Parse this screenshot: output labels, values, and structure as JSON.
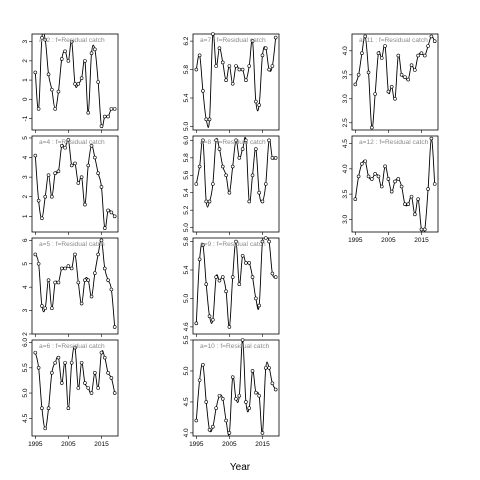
{
  "chart_data": {
    "type": "line",
    "xlabel": "Year",
    "xlim": [
      1994,
      2020
    ],
    "xticks": [
      1995,
      2005,
      2015
    ],
    "panels": [
      {
        "title": "a=2 :  f=Residual catch",
        "col": 0,
        "row": 0,
        "ylim": [
          -1.6,
          3.4
        ],
        "yticks": [
          -1,
          0,
          1,
          2,
          3
        ],
        "showXTicks": false,
        "x": [
          1995,
          1996,
          1997,
          1998,
          1999,
          2000,
          2001,
          2002,
          2003,
          2004,
          2005,
          2006,
          2007,
          2008,
          2009,
          2010,
          2011,
          2012,
          2013,
          2014,
          2015,
          2016,
          2017,
          2018,
          2019
        ],
        "y": [
          1.4,
          -0.5,
          3.2,
          3.1,
          1.3,
          0.5,
          -0.5,
          0.4,
          2.1,
          2.5,
          2.0,
          3.0,
          0.8,
          0.8,
          1.1,
          2.0,
          -0.7,
          2.4,
          2.6,
          0.9,
          -1.4,
          -0.9,
          -0.9,
          -0.5,
          -0.5
        ]
      },
      {
        "title": "a=4 :  f=Residual catch",
        "col": 0,
        "row": 1,
        "ylim": [
          0.2,
          5.1
        ],
        "yticks": [
          1,
          2,
          3,
          4,
          5
        ],
        "showXTicks": false,
        "x": [
          1995,
          1996,
          1997,
          1998,
          1999,
          2000,
          2001,
          2002,
          2003,
          2004,
          2005,
          2006,
          2007,
          2008,
          2009,
          2010,
          2011,
          2012,
          2013,
          2014,
          2015,
          2016,
          2017,
          2018,
          2019
        ],
        "y": [
          4.1,
          1.8,
          0.9,
          2.0,
          3.1,
          2.0,
          3.2,
          3.3,
          4.6,
          4.5,
          4.9,
          3.6,
          3.7,
          2.7,
          3.0,
          1.6,
          3.6,
          4.6,
          4.0,
          3.2,
          2.5,
          0.4,
          1.3,
          1.2,
          1.0
        ]
      },
      {
        "title": "a=5 :  f=Residual catch",
        "col": 0,
        "row": 2,
        "ylim": [
          2.0,
          6.1
        ],
        "yticks": [
          2,
          3,
          4,
          5,
          6
        ],
        "showXTicks": false,
        "x": [
          1995,
          1996,
          1997,
          1998,
          1999,
          2000,
          2001,
          2002,
          2003,
          2004,
          2005,
          2006,
          2007,
          2008,
          2009,
          2010,
          2011,
          2012,
          2013,
          2014,
          2015,
          2016,
          2017,
          2018,
          2019
        ],
        "y": [
          5.4,
          5.0,
          3.2,
          3.1,
          4.3,
          3.1,
          4.2,
          4.2,
          4.8,
          4.8,
          4.9,
          4.8,
          5.4,
          4.2,
          3.3,
          4.3,
          4.3,
          3.6,
          4.6,
          5.4,
          6.0,
          4.8,
          4.3,
          3.9,
          2.3
        ]
      },
      {
        "title": "a=6 :  f=Residual catch",
        "col": 0,
        "row": 3,
        "ylim": [
          4.15,
          6.05
        ],
        "yticks": [
          4.5,
          5.0,
          5.5,
          6.0
        ],
        "showXTicks": true,
        "x": [
          1995,
          1996,
          1997,
          1998,
          1999,
          2000,
          2001,
          2002,
          2003,
          2004,
          2005,
          2006,
          2007,
          2008,
          2009,
          2010,
          2011,
          2012,
          2013,
          2014,
          2015,
          2016,
          2017,
          2018,
          2019
        ],
        "y": [
          5.8,
          5.5,
          4.7,
          4.3,
          4.7,
          5.4,
          5.6,
          5.7,
          5.2,
          5.6,
          4.7,
          5.6,
          5.9,
          5.1,
          5.6,
          5.2,
          5.1,
          5.0,
          5.4,
          5.1,
          5.8,
          5.7,
          5.4,
          5.3,
          5.0
        ]
      },
      {
        "title": "a=7 :  f=Residual catch",
        "col": 1,
        "row": 0,
        "ylim": [
          4.95,
          6.3
        ],
        "yticks": [
          5.0,
          5.4,
          5.8,
          6.2
        ],
        "showXTicks": false,
        "x": [
          1995,
          1996,
          1997,
          1998,
          1999,
          2000,
          2001,
          2002,
          2003,
          2004,
          2005,
          2006,
          2007,
          2008,
          2009,
          2010,
          2011,
          2012,
          2013,
          2014,
          2015,
          2016,
          2017,
          2018,
          2019
        ],
        "y": [
          5.8,
          6.0,
          5.5,
          5.1,
          5.1,
          6.3,
          5.85,
          6.1,
          5.9,
          5.65,
          5.85,
          5.6,
          5.85,
          5.8,
          5.8,
          5.65,
          5.85,
          6.2,
          5.35,
          5.3,
          6.0,
          6.1,
          5.8,
          5.85,
          6.25
        ]
      },
      {
        "title": "a=8 :  f=Residual catch",
        "col": 1,
        "row": 1,
        "ylim": [
          4.95,
          6.05
        ],
        "yticks": [
          5.0,
          5.2,
          5.4,
          5.6,
          5.8,
          6.0
        ],
        "showXTicks": false,
        "x": [
          1995,
          1996,
          1997,
          1998,
          1999,
          2000,
          2001,
          2002,
          2003,
          2004,
          2005,
          2006,
          2007,
          2008,
          2009,
          2010,
          2011,
          2012,
          2013,
          2014,
          2015,
          2016,
          2017,
          2018,
          2019
        ],
        "y": [
          5.5,
          5.7,
          6.0,
          5.3,
          5.3,
          5.5,
          6.0,
          5.9,
          5.7,
          5.6,
          5.4,
          5.7,
          6.0,
          5.8,
          5.9,
          6.0,
          5.3,
          5.6,
          5.9,
          5.4,
          5.3,
          5.5,
          6.0,
          5.8,
          5.8
        ]
      },
      {
        "title": "a=9 :  f=Residual catch",
        "col": 1,
        "row": 2,
        "ylim": [
          4.5,
          5.85
        ],
        "yticks": [
          4.6,
          5.0,
          5.4,
          5.8
        ],
        "showXTicks": false,
        "x": [
          1995,
          1996,
          1997,
          1998,
          1999,
          2000,
          2001,
          2002,
          2003,
          2004,
          2005,
          2006,
          2007,
          2008,
          2009,
          2010,
          2011,
          2012,
          2013,
          2014,
          2015,
          2016,
          2017,
          2018,
          2019
        ],
        "y": [
          4.65,
          5.55,
          5.75,
          5.2,
          4.75,
          4.7,
          5.3,
          5.25,
          5.3,
          5.1,
          4.6,
          5.3,
          5.8,
          5.2,
          5.6,
          5.5,
          5.5,
          5.3,
          5.0,
          4.9,
          5.8,
          5.85,
          5.8,
          5.35,
          5.3
        ]
      },
      {
        "title": "a=10 :  f=Residual catch",
        "col": 1,
        "row": 3,
        "ylim": [
          3.95,
          5.5
        ],
        "yticks": [
          4.0,
          4.5,
          5.0,
          5.5
        ],
        "showXTicks": true,
        "x": [
          1995,
          1996,
          1997,
          1998,
          1999,
          2000,
          2001,
          2002,
          2003,
          2004,
          2005,
          2006,
          2007,
          2008,
          2009,
          2010,
          2011,
          2012,
          2013,
          2014,
          2015,
          2016,
          2017,
          2018,
          2019
        ],
        "y": [
          4.2,
          4.85,
          5.1,
          4.5,
          4.05,
          4.1,
          4.4,
          4.6,
          4.55,
          4.2,
          4.0,
          4.9,
          4.55,
          4.6,
          5.5,
          4.5,
          4.4,
          5.0,
          4.65,
          4.6,
          4.0,
          5.05,
          5.05,
          4.8,
          4.7
        ]
      },
      {
        "title": "a=11 :  f=Residual catch",
        "col": 2,
        "row": 0,
        "ylim": [
          2.35,
          4.35
        ],
        "yticks": [
          2.5,
          3.0,
          3.5,
          4.0
        ],
        "showXTicks": false,
        "x": [
          1995,
          1996,
          1997,
          1998,
          1999,
          2000,
          2001,
          2002,
          2003,
          2004,
          2005,
          2006,
          2007,
          2008,
          2009,
          2010,
          2011,
          2012,
          2013,
          2014,
          2015,
          2016,
          2017,
          2018,
          2019
        ],
        "y": [
          3.3,
          3.5,
          3.95,
          4.3,
          3.55,
          2.4,
          3.1,
          3.95,
          3.85,
          4.1,
          3.15,
          3.25,
          3.0,
          3.9,
          3.5,
          3.45,
          3.4,
          3.7,
          3.6,
          3.9,
          3.95,
          3.9,
          4.1,
          4.3,
          4.2
        ]
      },
      {
        "title": "a=12 :  f=Residual catch",
        "col": 2,
        "row": 1,
        "ylim": [
          2.75,
          4.65
        ],
        "yticks": [
          3.0,
          3.5,
          4.0,
          4.5
        ],
        "showXTicks": true,
        "x": [
          1995,
          1996,
          1997,
          1998,
          1999,
          2000,
          2001,
          2002,
          2003,
          2004,
          2005,
          2006,
          2007,
          2008,
          2009,
          2010,
          2011,
          2012,
          2013,
          2014,
          2015,
          2016,
          2017,
          2018,
          2019
        ],
        "y": [
          3.4,
          3.85,
          4.1,
          4.15,
          3.85,
          3.8,
          3.9,
          3.85,
          3.65,
          4.05,
          3.8,
          3.55,
          3.75,
          3.8,
          3.65,
          3.3,
          3.3,
          3.45,
          3.1,
          3.4,
          2.8,
          2.8,
          3.6,
          4.6,
          3.7
        ]
      }
    ]
  }
}
